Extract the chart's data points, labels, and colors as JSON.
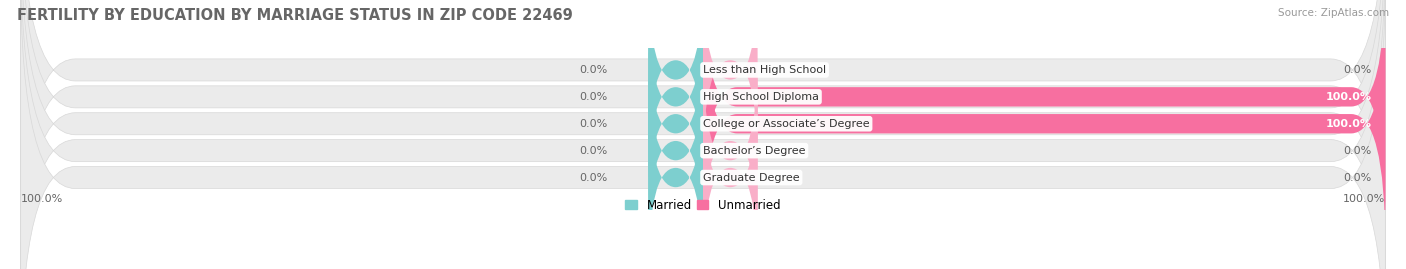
{
  "title": "FERTILITY BY EDUCATION BY MARRIAGE STATUS IN ZIP CODE 22469",
  "source": "Source: ZipAtlas.com",
  "categories": [
    "Less than High School",
    "High School Diploma",
    "College or Associate’s Degree",
    "Bachelor’s Degree",
    "Graduate Degree"
  ],
  "married_values": [
    0.0,
    0.0,
    0.0,
    0.0,
    0.0
  ],
  "unmarried_values": [
    0.0,
    100.0,
    100.0,
    0.0,
    0.0
  ],
  "left_labels": [
    "0.0%",
    "0.0%",
    "0.0%",
    "0.0%",
    "0.0%"
  ],
  "right_labels": [
    "0.0%",
    "100.0%",
    "100.0%",
    "0.0%",
    "0.0%"
  ],
  "bottom_left_label": "100.0%",
  "bottom_right_label": "100.0%",
  "married_color": "#7dcfcf",
  "unmarried_color": "#f76fa0",
  "unmarried_light_color": "#f9aec8",
  "row_bg_color": "#ebebeb",
  "row_border_color": "#d8d8d8",
  "title_color": "#666666",
  "label_color": "#666666",
  "category_color": "#333333",
  "source_color": "#999999",
  "legend_married": "Married",
  "legend_unmarried": "Unmarried",
  "title_fontsize": 10.5,
  "label_fontsize": 8.0,
  "category_fontsize": 8.0,
  "legend_fontsize": 8.5,
  "source_fontsize": 7.5,
  "xlim": [
    -100,
    100
  ],
  "background_color": "#ffffff"
}
